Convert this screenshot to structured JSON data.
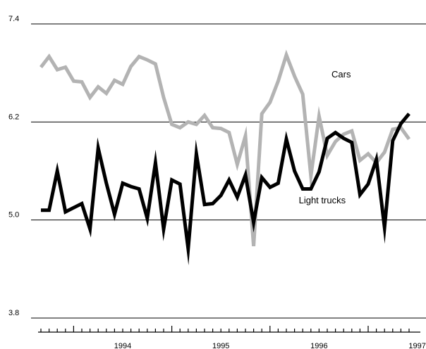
{
  "chart_data": {
    "type": "line",
    "title": "",
    "xlabel": "",
    "ylabel": "",
    "ylim": [
      3.8,
      7.4
    ],
    "yticks": [
      "7.4",
      "6.2",
      "5.0",
      "3.8"
    ],
    "yticks_values": [
      7.4,
      6.2,
      5.0,
      3.8
    ],
    "x_start": "1993-09",
    "x_end": "1997-06",
    "year_labels": [
      {
        "label": "1994",
        "date": "1994-07"
      },
      {
        "label": "1995",
        "date": "1995-07"
      },
      {
        "label": "1996",
        "date": "1996-07"
      },
      {
        "label": "1997",
        "date": "1997-07"
      }
    ],
    "grid": "horizontal",
    "legend": "inline labels",
    "series": [
      {
        "name": "Cars",
        "color": "#b3b3b3",
        "label_date": "1996-08",
        "label_value": 6.78,
        "values": [
          {
            "date": "1993-09",
            "value": 6.87
          },
          {
            "date": "1993-10",
            "value": 7.0
          },
          {
            "date": "1993-11",
            "value": 6.84
          },
          {
            "date": "1993-12",
            "value": 6.87
          },
          {
            "date": "1994-01",
            "value": 6.7
          },
          {
            "date": "1994-02",
            "value": 6.69
          },
          {
            "date": "1994-03",
            "value": 6.5
          },
          {
            "date": "1994-04",
            "value": 6.63
          },
          {
            "date": "1994-05",
            "value": 6.55
          },
          {
            "date": "1994-06",
            "value": 6.71
          },
          {
            "date": "1994-07",
            "value": 6.66
          },
          {
            "date": "1994-08",
            "value": 6.88
          },
          {
            "date": "1994-09",
            "value": 7.0
          },
          {
            "date": "1994-10",
            "value": 6.96
          },
          {
            "date": "1994-11",
            "value": 6.91
          },
          {
            "date": "1994-12",
            "value": 6.5
          },
          {
            "date": "1995-01",
            "value": 6.17
          },
          {
            "date": "1995-02",
            "value": 6.13
          },
          {
            "date": "1995-03",
            "value": 6.2
          },
          {
            "date": "1995-04",
            "value": 6.17
          },
          {
            "date": "1995-05",
            "value": 6.28
          },
          {
            "date": "1995-06",
            "value": 6.13
          },
          {
            "date": "1995-07",
            "value": 6.12
          },
          {
            "date": "1995-08",
            "value": 6.07
          },
          {
            "date": "1995-09",
            "value": 5.68
          },
          {
            "date": "1995-10",
            "value": 6.03
          },
          {
            "date": "1995-11",
            "value": 4.68
          },
          {
            "date": "1995-12",
            "value": 6.3
          },
          {
            "date": "1996-01",
            "value": 6.44
          },
          {
            "date": "1996-02",
            "value": 6.7
          },
          {
            "date": "1996-03",
            "value": 7.02
          },
          {
            "date": "1996-04",
            "value": 6.76
          },
          {
            "date": "1996-05",
            "value": 6.54
          },
          {
            "date": "1996-06",
            "value": 5.54
          },
          {
            "date": "1996-07",
            "value": 6.27
          },
          {
            "date": "1996-08",
            "value": 5.79
          },
          {
            "date": "1996-09",
            "value": 5.96
          },
          {
            "date": "1996-10",
            "value": 6.05
          },
          {
            "date": "1996-11",
            "value": 6.09
          },
          {
            "date": "1996-12",
            "value": 5.73
          },
          {
            "date": "1997-01",
            "value": 5.81
          },
          {
            "date": "1997-02",
            "value": 5.7
          },
          {
            "date": "1997-03",
            "value": 5.83
          },
          {
            "date": "1997-04",
            "value": 6.11
          },
          {
            "date": "1997-05",
            "value": 6.13
          },
          {
            "date": "1997-06",
            "value": 5.99
          }
        ]
      },
      {
        "name": "Light trucks",
        "color": "#000000",
        "label_date": "1996-04",
        "label_value": 5.24,
        "values": [
          {
            "date": "1993-09",
            "value": 5.12
          },
          {
            "date": "1993-10",
            "value": 5.12
          },
          {
            "date": "1993-11",
            "value": 5.6
          },
          {
            "date": "1993-12",
            "value": 5.1
          },
          {
            "date": "1994-01",
            "value": 5.15
          },
          {
            "date": "1994-02",
            "value": 5.2
          },
          {
            "date": "1994-03",
            "value": 4.89
          },
          {
            "date": "1994-04",
            "value": 5.88
          },
          {
            "date": "1994-05",
            "value": 5.45
          },
          {
            "date": "1994-06",
            "value": 5.07
          },
          {
            "date": "1994-07",
            "value": 5.45
          },
          {
            "date": "1994-08",
            "value": 5.41
          },
          {
            "date": "1994-09",
            "value": 5.38
          },
          {
            "date": "1994-10",
            "value": 5.02
          },
          {
            "date": "1994-11",
            "value": 5.7
          },
          {
            "date": "1994-12",
            "value": 4.89
          },
          {
            "date": "1995-01",
            "value": 5.49
          },
          {
            "date": "1995-02",
            "value": 5.44
          },
          {
            "date": "1995-03",
            "value": 4.65
          },
          {
            "date": "1995-04",
            "value": 5.81
          },
          {
            "date": "1995-05",
            "value": 5.19
          },
          {
            "date": "1995-06",
            "value": 5.2
          },
          {
            "date": "1995-07",
            "value": 5.3
          },
          {
            "date": "1995-08",
            "value": 5.49
          },
          {
            "date": "1995-09",
            "value": 5.28
          },
          {
            "date": "1995-10",
            "value": 5.55
          },
          {
            "date": "1995-11",
            "value": 4.97
          },
          {
            "date": "1995-12",
            "value": 5.52
          },
          {
            "date": "1996-01",
            "value": 5.4
          },
          {
            "date": "1996-02",
            "value": 5.45
          },
          {
            "date": "1996-03",
            "value": 5.99
          },
          {
            "date": "1996-04",
            "value": 5.6
          },
          {
            "date": "1996-05",
            "value": 5.38
          },
          {
            "date": "1996-06",
            "value": 5.38
          },
          {
            "date": "1996-07",
            "value": 5.59
          },
          {
            "date": "1996-08",
            "value": 6.0
          },
          {
            "date": "1996-09",
            "value": 6.07
          },
          {
            "date": "1996-10",
            "value": 6.0
          },
          {
            "date": "1996-11",
            "value": 5.95
          },
          {
            "date": "1996-12",
            "value": 5.31
          },
          {
            "date": "1997-01",
            "value": 5.44
          },
          {
            "date": "1997-02",
            "value": 5.74
          },
          {
            "date": "1997-03",
            "value": 4.91
          },
          {
            "date": "1997-04",
            "value": 5.97
          },
          {
            "date": "1997-05",
            "value": 6.18
          },
          {
            "date": "1997-06",
            "value": 6.3
          }
        ]
      }
    ]
  }
}
